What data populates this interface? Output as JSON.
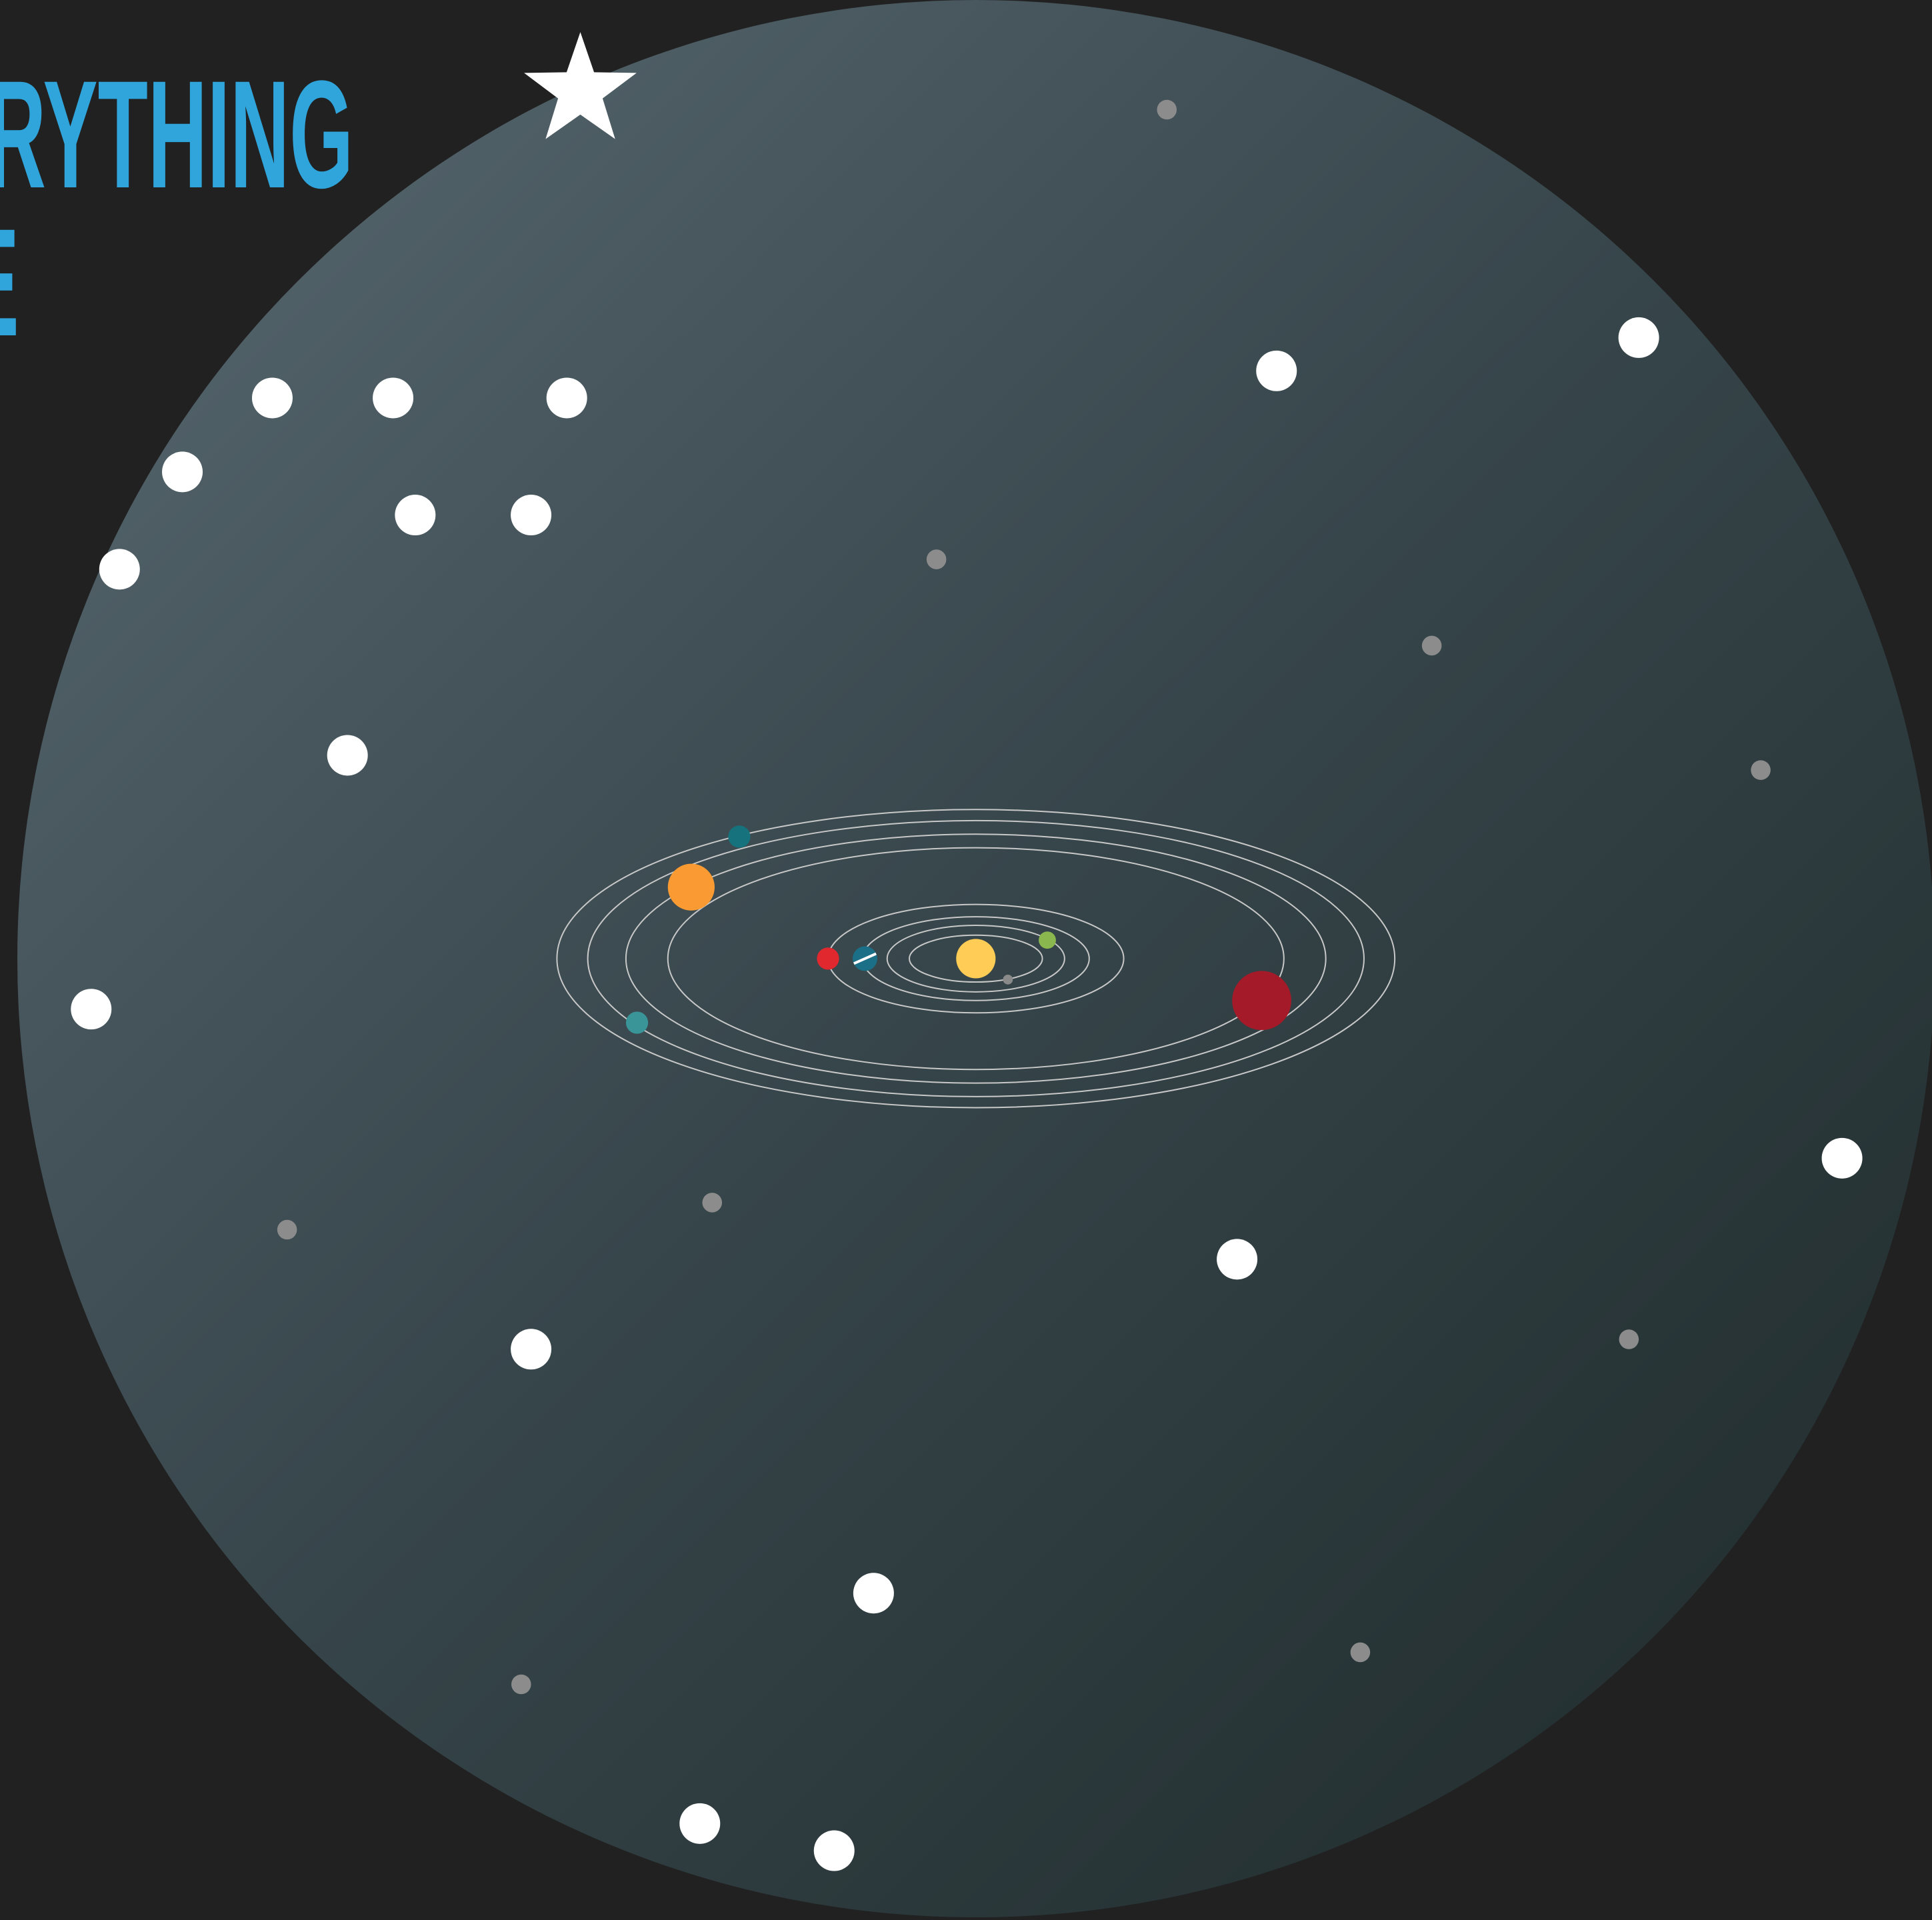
{
  "header": {
    "title_lines": [
      "RYTHING",
      "E"
    ]
  }
}
